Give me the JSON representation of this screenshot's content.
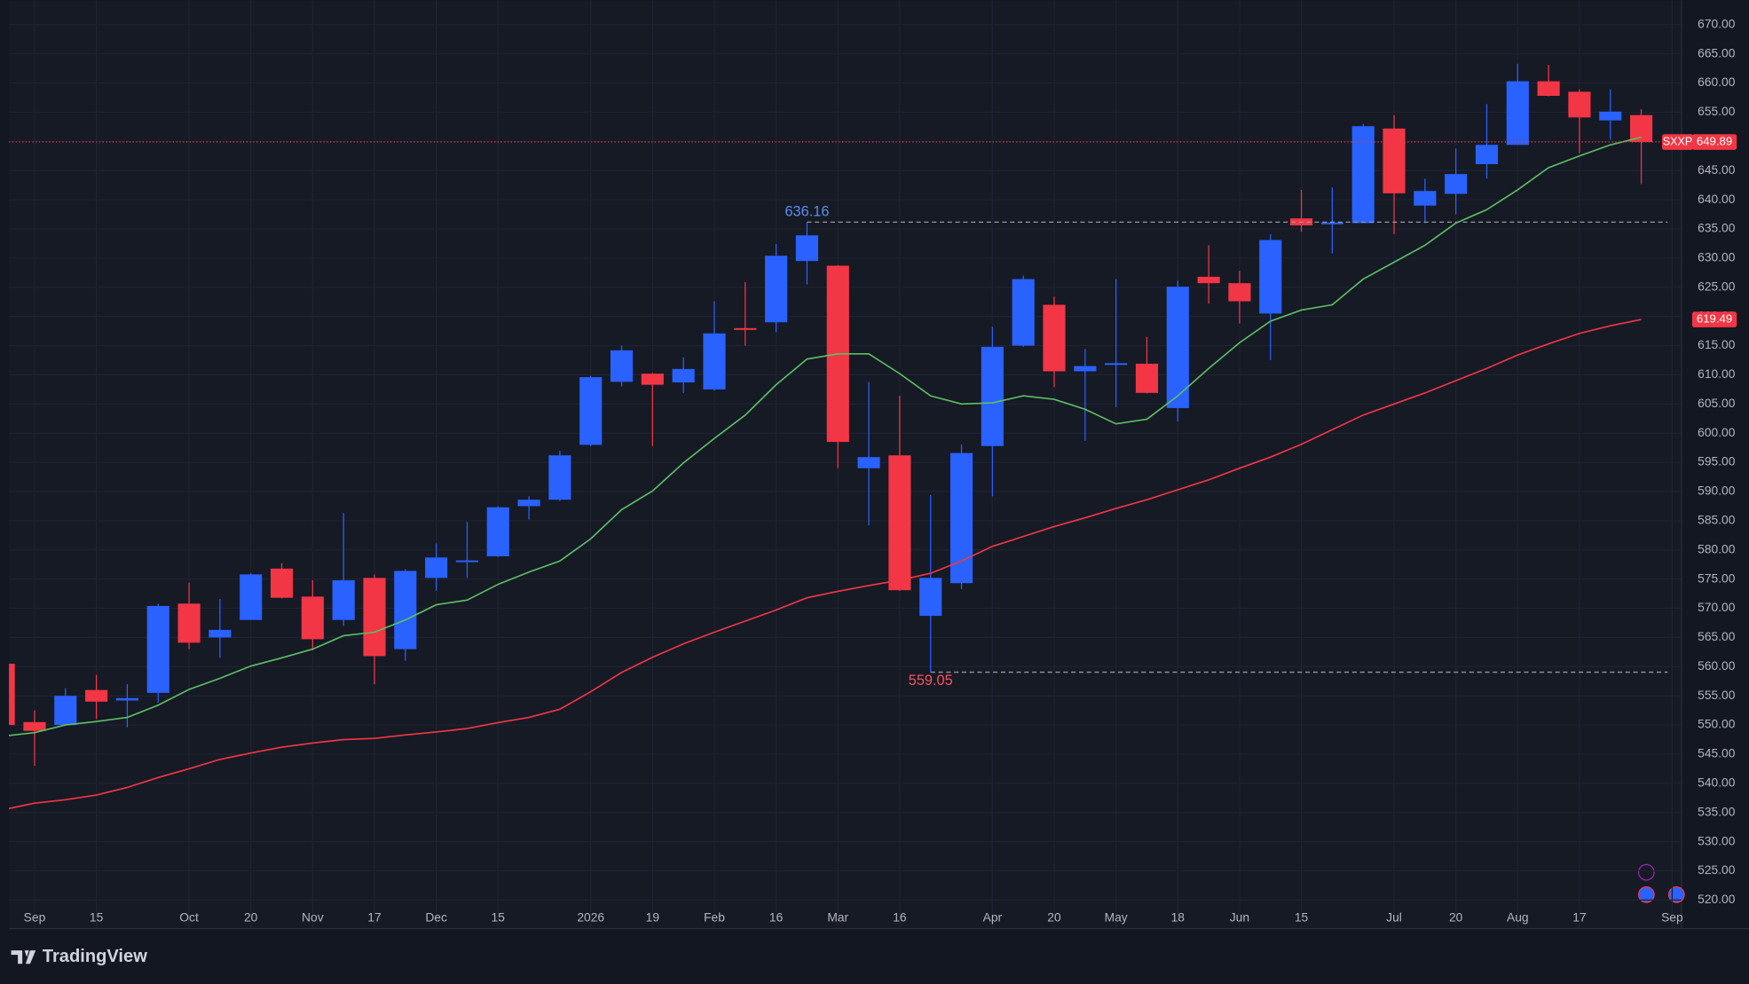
{
  "chart_data": {
    "type": "candlestick",
    "symbol": "SXXP",
    "brand": "TradingView",
    "up_color": "#2962ff",
    "down_color": "#f23645",
    "categories": [
      null,
      "Sep",
      null,
      "15",
      null,
      null,
      "Oct",
      null,
      "20",
      null,
      "Nov",
      null,
      "17",
      null,
      "Dec",
      null,
      "15",
      null,
      null,
      "2026",
      null,
      "19",
      null,
      "Feb",
      null,
      "16",
      null,
      "Mar",
      null,
      "16",
      null,
      null,
      "Apr",
      null,
      "20",
      null,
      "May",
      null,
      "18",
      null,
      "Jun",
      null,
      "15",
      null,
      null,
      "Jul",
      null,
      "20",
      null,
      "Aug",
      null,
      "17",
      null,
      null,
      "Sep"
    ],
    "candles": {
      "open": [
        560.5,
        550.5,
        550,
        556,
        554.2,
        555.5,
        570.8,
        565,
        568,
        576.8,
        572,
        568,
        575.2,
        563,
        575.2,
        577.9,
        578.9,
        587.5,
        588.6,
        598,
        608.8,
        610.2,
        608.7,
        607.5,
        618,
        619,
        629.5,
        628.7,
        594,
        596.2,
        568.7,
        574.3,
        597.8,
        615,
        622,
        610.6,
        611.7,
        611.9,
        604.3,
        626.8,
        625.7,
        620.5,
        636.8,
        635.8,
        636,
        652.2,
        639,
        641,
        646.1,
        649.4,
        660.3,
        658.5,
        653.6,
        654.5,
        null
      ],
      "high": [
        561,
        552.5,
        556.3,
        558.6,
        557,
        570.8,
        574.4,
        571.6,
        576,
        577.7,
        574.8,
        586.3,
        575.8,
        576.7,
        581.1,
        584.8,
        587.5,
        589.2,
        597,
        609.8,
        615,
        610.3,
        613,
        622.6,
        625.9,
        632.4,
        636.16,
        628.8,
        608.8,
        606.4,
        589.4,
        598.1,
        618.2,
        627,
        623.4,
        614.4,
        626.4,
        616.5,
        626.1,
        632.2,
        627.8,
        634.1,
        641.7,
        642.1,
        653,
        654.5,
        643.6,
        648.8,
        656.4,
        663.3,
        663.1,
        658.9,
        658.9,
        655.5,
        null
      ],
      "low": [
        549,
        543,
        550,
        551,
        549.6,
        553.8,
        563,
        561.5,
        568,
        571.7,
        562.8,
        567,
        557,
        561,
        573,
        575.2,
        578.8,
        585.2,
        588.4,
        597.8,
        608,
        597.8,
        606.9,
        607.3,
        615,
        617.3,
        625.5,
        594,
        584.2,
        573,
        559.05,
        573.3,
        589.2,
        614.8,
        607.9,
        598.7,
        604.5,
        606.8,
        602,
        622.2,
        618.8,
        612.5,
        634.5,
        630.8,
        636,
        634.1,
        636,
        637.5,
        643.6,
        649.4,
        657.7,
        648,
        650.3,
        642.7,
        null
      ],
      "close": [
        550,
        549,
        555,
        554,
        554.6,
        570.4,
        564.1,
        566.3,
        575.8,
        571.8,
        564.7,
        574.8,
        561.8,
        576.4,
        578.7,
        578.2,
        587.3,
        588.6,
        596.2,
        609.6,
        614.2,
        608.3,
        611,
        617.1,
        617.7,
        630.4,
        633.9,
        598.5,
        595.9,
        573.1,
        575.2,
        596.6,
        614.8,
        626.4,
        610.6,
        611.5,
        612,
        606.9,
        625.1,
        625.7,
        622.6,
        633.1,
        635.6,
        636.1,
        652.6,
        641.1,
        641.5,
        644.4,
        649.4,
        660.3,
        657.8,
        654.1,
        655.1,
        649.89,
        null
      ]
    },
    "lines": [
      {
        "color": "#5cbf63",
        "values": [
          548.1,
          548.7,
          550,
          550.6,
          551.3,
          553.4,
          556.1,
          558,
          560.1,
          561.5,
          563,
          565.3,
          565.9,
          568,
          570.6,
          571.4,
          574.1,
          576.2,
          578.1,
          581.9,
          586.9,
          590.1,
          594.9,
          599.1,
          603.1,
          608.3,
          612.7,
          613.6,
          613.6,
          610.2,
          606.4,
          605,
          605.2,
          606.4,
          605.8,
          604.1,
          601.6,
          602.4,
          606.4,
          611.1,
          615.5,
          619.2,
          621.1,
          622,
          626.4,
          629.3,
          632.2,
          636,
          638.3,
          641.7,
          645.5,
          647.5,
          649.4,
          650.7,
          null
        ]
      },
      {
        "color": "#f23645",
        "values": [
          535.5,
          536.6,
          537.2,
          538,
          539.3,
          541,
          542.5,
          544.1,
          545.2,
          546.2,
          546.9,
          547.5,
          547.7,
          548.3,
          548.8,
          549.4,
          550.4,
          551.3,
          552.7,
          555.7,
          559,
          561.6,
          563.9,
          565.9,
          567.8,
          569.7,
          571.8,
          572.9,
          573.9,
          574.8,
          576,
          578.1,
          580.6,
          582.3,
          584,
          585.5,
          587.1,
          588.6,
          590.3,
          592,
          594,
          595.9,
          598.1,
          600.6,
          603.1,
          605,
          606.9,
          609,
          611.1,
          613.4,
          615.3,
          617.1,
          618.4,
          619.49,
          null
        ]
      }
    ],
    "annotations": [
      {
        "value": 636.16,
        "color": "#5b8def"
      },
      {
        "value": 559.05,
        "color": "#f7525f"
      }
    ],
    "ylim": [
      515.2,
      674.2
    ],
    "yticks": [
      {
        "value": 520,
        "label": "520.00"
      },
      {
        "value": 525,
        "label": "525.00"
      },
      {
        "value": 530,
        "label": "530.00"
      },
      {
        "value": 535,
        "label": "535.00"
      },
      {
        "value": 540,
        "label": "540.00"
      },
      {
        "value": 545,
        "label": "545.00"
      },
      {
        "value": 550,
        "label": "550.00"
      },
      {
        "value": 555,
        "label": "555.00"
      },
      {
        "value": 560,
        "label": "560.00"
      },
      {
        "value": 565,
        "label": "565.00"
      },
      {
        "value": 570,
        "label": "570.00"
      },
      {
        "value": 575,
        "label": "575.00"
      },
      {
        "value": 580,
        "label": "580.00"
      },
      {
        "value": 585,
        "label": "585.00"
      },
      {
        "value": 590,
        "label": "590.00"
      },
      {
        "value": 595,
        "label": "595.00"
      },
      {
        "value": 600,
        "label": "600.00"
      },
      {
        "value": 605,
        "label": "605.00"
      },
      {
        "value": 610,
        "label": "610.00"
      },
      {
        "value": 615,
        "label": "615.00"
      },
      {
        "value": 620,
        "label": "620.00"
      },
      {
        "value": 625,
        "label": "625.00"
      },
      {
        "value": 630,
        "label": "630.00"
      },
      {
        "value": 635,
        "label": "635.00"
      },
      {
        "value": 640,
        "label": "640.00"
      },
      {
        "value": 645,
        "label": "645.00"
      },
      {
        "value": 650,
        "label": "650.00"
      },
      {
        "value": 655,
        "label": "655.00"
      },
      {
        "value": 660,
        "label": "660.00"
      },
      {
        "value": 665,
        "label": "665.00"
      },
      {
        "value": 670,
        "label": "670.00"
      }
    ],
    "grid": true
  }
}
